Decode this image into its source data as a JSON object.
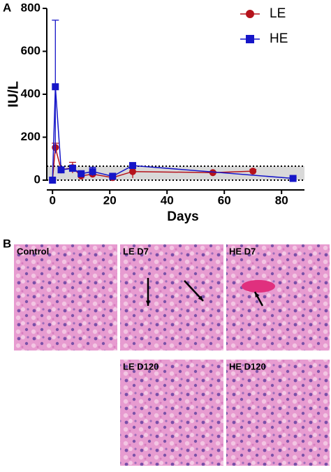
{
  "chart_data": {
    "type": "line",
    "panel_label": "A",
    "x_label": "Days",
    "y_label": "IU/L",
    "xlim": [
      -2,
      88
    ],
    "xticks": [
      0,
      20,
      40,
      60,
      80
    ],
    "ylim": [
      0,
      800
    ],
    "yticks": [
      0,
      200,
      400,
      600,
      800
    ],
    "shaded_range": [
      0,
      65
    ],
    "legend_position": "upper right",
    "series": [
      {
        "name": "LE",
        "color": "#b5121b",
        "marker": "circle",
        "x": [
          0,
          1,
          3,
          7,
          10,
          14,
          21,
          28,
          56,
          70
        ],
        "values": [
          0,
          152,
          48,
          58,
          20,
          28,
          12,
          40,
          35,
          42
        ],
        "errors": [
          0,
          20,
          8,
          25,
          10,
          12,
          6,
          30,
          5,
          8
        ]
      },
      {
        "name": "HE",
        "color": "#1515c8",
        "marker": "square",
        "x": [
          0,
          1,
          3,
          7,
          10,
          14,
          21,
          28,
          84
        ],
        "values": [
          0,
          435,
          48,
          55,
          30,
          40,
          18,
          68,
          8
        ],
        "errors": [
          0,
          310,
          8,
          15,
          10,
          20,
          6,
          10,
          4
        ]
      }
    ]
  },
  "panel_b": {
    "panel_label": "B",
    "images": [
      {
        "label": "Control"
      },
      {
        "label": "LE D7"
      },
      {
        "label": "HE D7"
      },
      {
        "label": "LE D120"
      },
      {
        "label": "HE D120"
      }
    ]
  }
}
